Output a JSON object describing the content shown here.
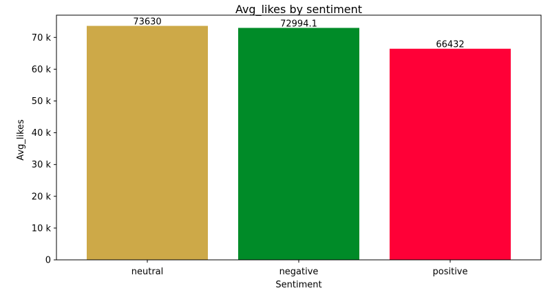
{
  "chart_data": {
    "type": "bar",
    "title": "Avg_likes by sentiment",
    "xlabel": "Sentiment",
    "ylabel": "Avg_likes",
    "categories": [
      "neutral",
      "negative",
      "positive"
    ],
    "values": [
      73630,
      72994.1,
      66432
    ],
    "value_labels": [
      "73630",
      "72994.1",
      "66432"
    ],
    "colors": [
      "#cda948",
      "#008b28",
      "#ff0037"
    ],
    "ylim": [
      0,
      77000
    ],
    "yticks": [
      0,
      10000,
      20000,
      30000,
      40000,
      50000,
      60000,
      70000
    ],
    "ytick_labels": [
      "0",
      "10 k",
      "20 k",
      "30 k",
      "40 k",
      "50 k",
      "60 k",
      "70 k"
    ],
    "grid": false,
    "legend": "none"
  }
}
